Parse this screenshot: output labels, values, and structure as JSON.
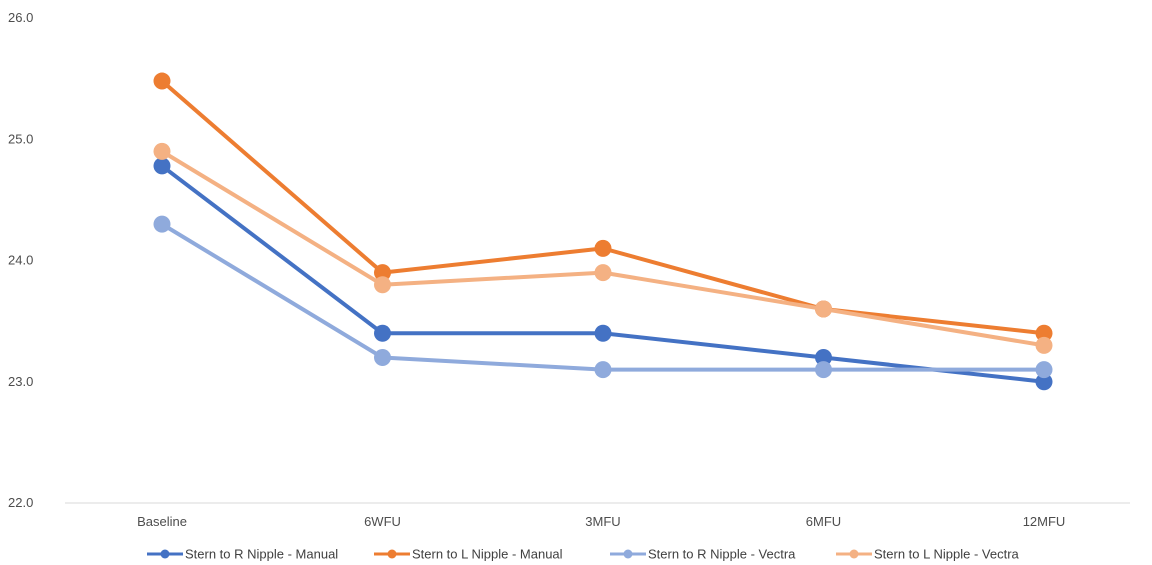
{
  "chart_data": {
    "type": "line",
    "title": "",
    "xlabel": "",
    "ylabel": "",
    "categories": [
      "Baseline",
      "6WFU",
      "3MFU",
      "6MFU",
      "12MFU"
    ],
    "ylim": [
      22.0,
      26.0
    ],
    "y_ticks": [
      "22.0",
      "23.0",
      "24.0",
      "25.0",
      "26.0"
    ],
    "y_tick_values": [
      22,
      23,
      24,
      25,
      26
    ],
    "grid": "baseline only",
    "legend_position": "bottom",
    "series": [
      {
        "name": "Stern to R Nipple - Manual",
        "color": "#4472C4",
        "values": [
          24.78,
          23.4,
          23.4,
          23.2,
          23.0
        ]
      },
      {
        "name": "Stern to L Nipple - Manual",
        "color": "#ED7D31",
        "values": [
          25.48,
          23.9,
          24.1,
          23.6,
          23.4
        ]
      },
      {
        "name": "Stern to R Nipple - Vectra",
        "color": "#8FAADC",
        "values": [
          24.3,
          23.2,
          23.1,
          23.1,
          23.1
        ]
      },
      {
        "name": "Stern to L Nipple - Vectra",
        "color": "#F4B183",
        "values": [
          24.9,
          23.8,
          23.9,
          23.6,
          23.3
        ]
      }
    ]
  }
}
